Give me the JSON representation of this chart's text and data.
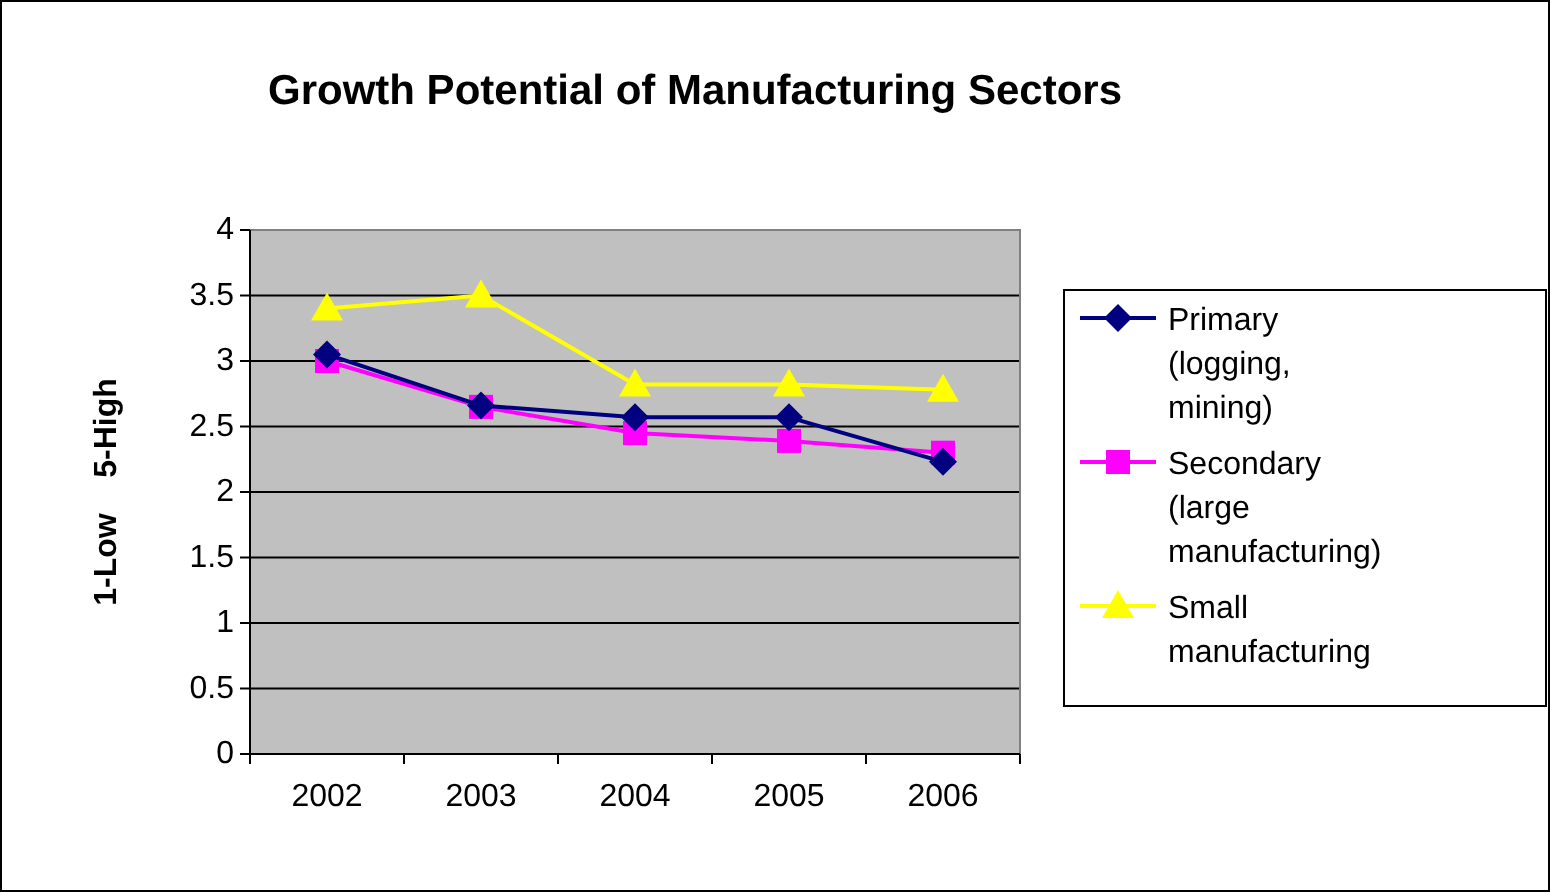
{
  "chart_data": {
    "type": "line",
    "title": "Growth Potential of Manufacturing Sectors",
    "ylabel": "1-Low    5-High",
    "categories": [
      "2002",
      "2003",
      "2004",
      "2005",
      "2006"
    ],
    "series": [
      {
        "name": "Primary (logging, mining)",
        "color": "#000080",
        "marker": "diamond",
        "values": [
          3.05,
          2.66,
          2.57,
          2.57,
          2.23
        ]
      },
      {
        "name": "Secondary (large manufacturing)",
        "color": "#ff00ff",
        "marker": "square",
        "values": [
          3.0,
          2.65,
          2.45,
          2.39,
          2.3
        ]
      },
      {
        "name": "Small manufacturing",
        "color": "#ffff00",
        "marker": "triangle",
        "values": [
          3.4,
          3.5,
          2.82,
          2.82,
          2.78
        ]
      }
    ],
    "ylim": [
      0,
      4
    ],
    "yticks": [
      0,
      0.5,
      1,
      1.5,
      2,
      2.5,
      3,
      3.5,
      4
    ],
    "grid": "y",
    "legend": "right"
  }
}
